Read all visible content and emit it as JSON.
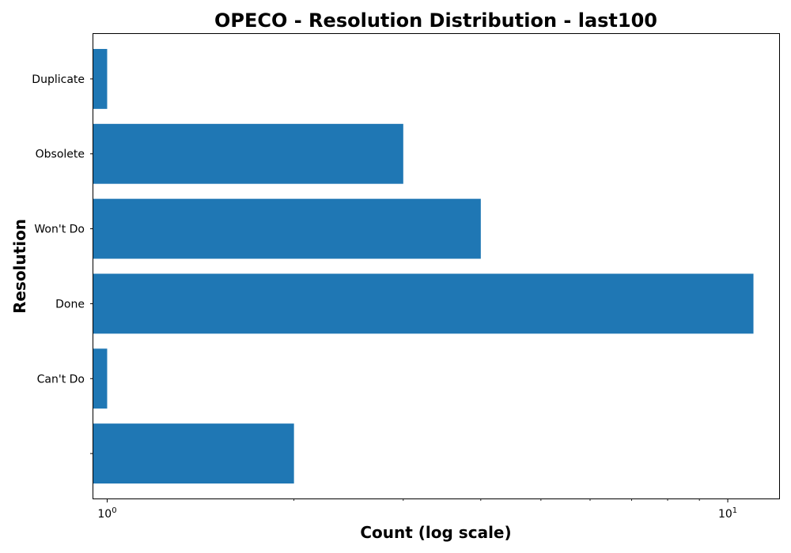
{
  "chart_data": {
    "type": "bar",
    "orientation": "horizontal",
    "title": "OPECO - Resolution Distribution - last100",
    "xlabel": "Count (log scale)",
    "ylabel": "Resolution",
    "x_scale": "log",
    "xlim": [
      0.95,
      12.1
    ],
    "x_ticks": [
      {
        "value": 1,
        "base": "10",
        "exp": "0"
      },
      {
        "value": 10,
        "base": "10",
        "exp": "1"
      }
    ],
    "categories": [
      "",
      "Can't Do",
      "Done",
      "Won't Do",
      "Obsolete",
      "Duplicate"
    ],
    "values": [
      2,
      1,
      11,
      4,
      3,
      1
    ],
    "bar_color": "#1f77b4",
    "grid": false,
    "legend": "none"
  }
}
